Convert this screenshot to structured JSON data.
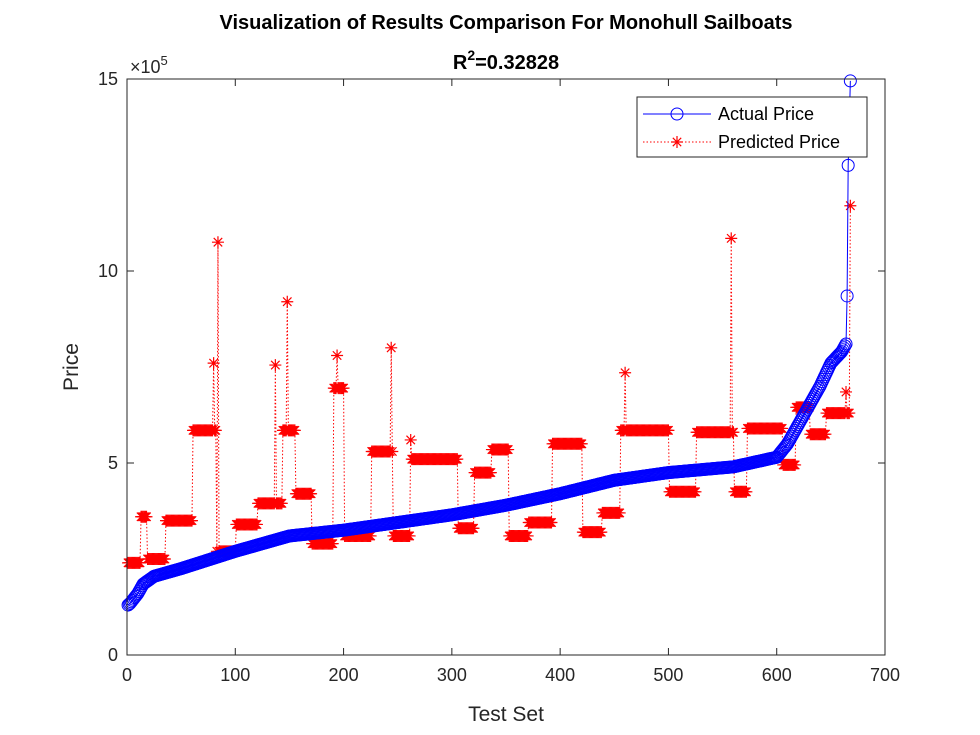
{
  "chart_data": {
    "type": "line",
    "title_line1": "Visualization of Results Comparison For Monohull Sailboats",
    "title_r_symbol": "R",
    "title_r_exponent": "2",
    "title_r_value": "=0.32828",
    "xlabel": "Test Set",
    "ylabel": "Price",
    "y_multiplier_prefix": "×10",
    "y_multiplier_exponent": "5",
    "xlim": [
      0,
      700
    ],
    "ylim": [
      0,
      15
    ],
    "x_ticks": [
      0,
      100,
      200,
      300,
      400,
      500,
      600,
      700
    ],
    "y_ticks": [
      0,
      5,
      10,
      15
    ],
    "grid": false,
    "legend_position": "top-right",
    "colors": {
      "actual": "#0000ff",
      "predicted": "#ff0000",
      "axis": "#262626"
    },
    "series": [
      {
        "name": "Actual Price",
        "style": "solid line with circle markers",
        "x_start": 1,
        "x_end": 668,
        "anchors": [
          [
            1,
            1.3
          ],
          [
            3,
            1.35
          ],
          [
            10,
            1.6
          ],
          [
            15,
            1.85
          ],
          [
            25,
            2.05
          ],
          [
            50,
            2.25
          ],
          [
            100,
            2.7
          ],
          [
            150,
            3.1
          ],
          [
            200,
            3.25
          ],
          [
            250,
            3.45
          ],
          [
            300,
            3.65
          ],
          [
            350,
            3.9
          ],
          [
            400,
            4.2
          ],
          [
            450,
            4.55
          ],
          [
            500,
            4.75
          ],
          [
            560,
            4.9
          ],
          [
            600,
            5.15
          ],
          [
            610,
            5.5
          ],
          [
            620,
            6.0
          ],
          [
            630,
            6.5
          ],
          [
            640,
            7.0
          ],
          [
            650,
            7.6
          ],
          [
            660,
            7.9
          ],
          [
            664,
            8.1
          ],
          [
            665,
            9.35
          ],
          [
            666,
            12.75
          ],
          [
            668,
            14.95
          ]
        ]
      },
      {
        "name": "Predicted Price",
        "style": "dotted line with star markers",
        "x_start": 1,
        "x_end": 668,
        "plateaus": [
          [
            1,
            12,
            2.4
          ],
          [
            13,
            18,
            3.6
          ],
          [
            19,
            35,
            2.5
          ],
          [
            36,
            60,
            3.5
          ],
          [
            61,
            82,
            5.85
          ],
          [
            83,
            100,
            2.7
          ],
          [
            101,
            120,
            3.4
          ],
          [
            121,
            143,
            3.95
          ],
          [
            144,
            155,
            5.85
          ],
          [
            156,
            170,
            4.2
          ],
          [
            171,
            190,
            2.9
          ],
          [
            191,
            200,
            6.95
          ],
          [
            201,
            225,
            3.1
          ],
          [
            226,
            245,
            5.3
          ],
          [
            246,
            262,
            3.1
          ],
          [
            263,
            305,
            5.1
          ],
          [
            306,
            320,
            3.3
          ],
          [
            321,
            336,
            4.75
          ],
          [
            337,
            352,
            5.35
          ],
          [
            353,
            370,
            3.1
          ],
          [
            371,
            392,
            3.45
          ],
          [
            393,
            420,
            5.5
          ],
          [
            421,
            438,
            3.2
          ],
          [
            439,
            455,
            3.7
          ],
          [
            456,
            500,
            5.85
          ],
          [
            501,
            525,
            4.25
          ],
          [
            526,
            560,
            5.8
          ],
          [
            561,
            572,
            4.25
          ],
          [
            573,
            605,
            5.9
          ],
          [
            606,
            617,
            4.95
          ],
          [
            618,
            630,
            6.45
          ],
          [
            631,
            645,
            5.75
          ],
          [
            646,
            668,
            6.3
          ]
        ],
        "spikes": [
          [
            80,
            7.6
          ],
          [
            84,
            10.75
          ],
          [
            137,
            7.55
          ],
          [
            148,
            9.2
          ],
          [
            194,
            7.8
          ],
          [
            244,
            8.0
          ],
          [
            262,
            5.6
          ],
          [
            460,
            7.35
          ],
          [
            558,
            10.85
          ],
          [
            664,
            6.85
          ],
          [
            668,
            11.7
          ]
        ]
      }
    ]
  }
}
